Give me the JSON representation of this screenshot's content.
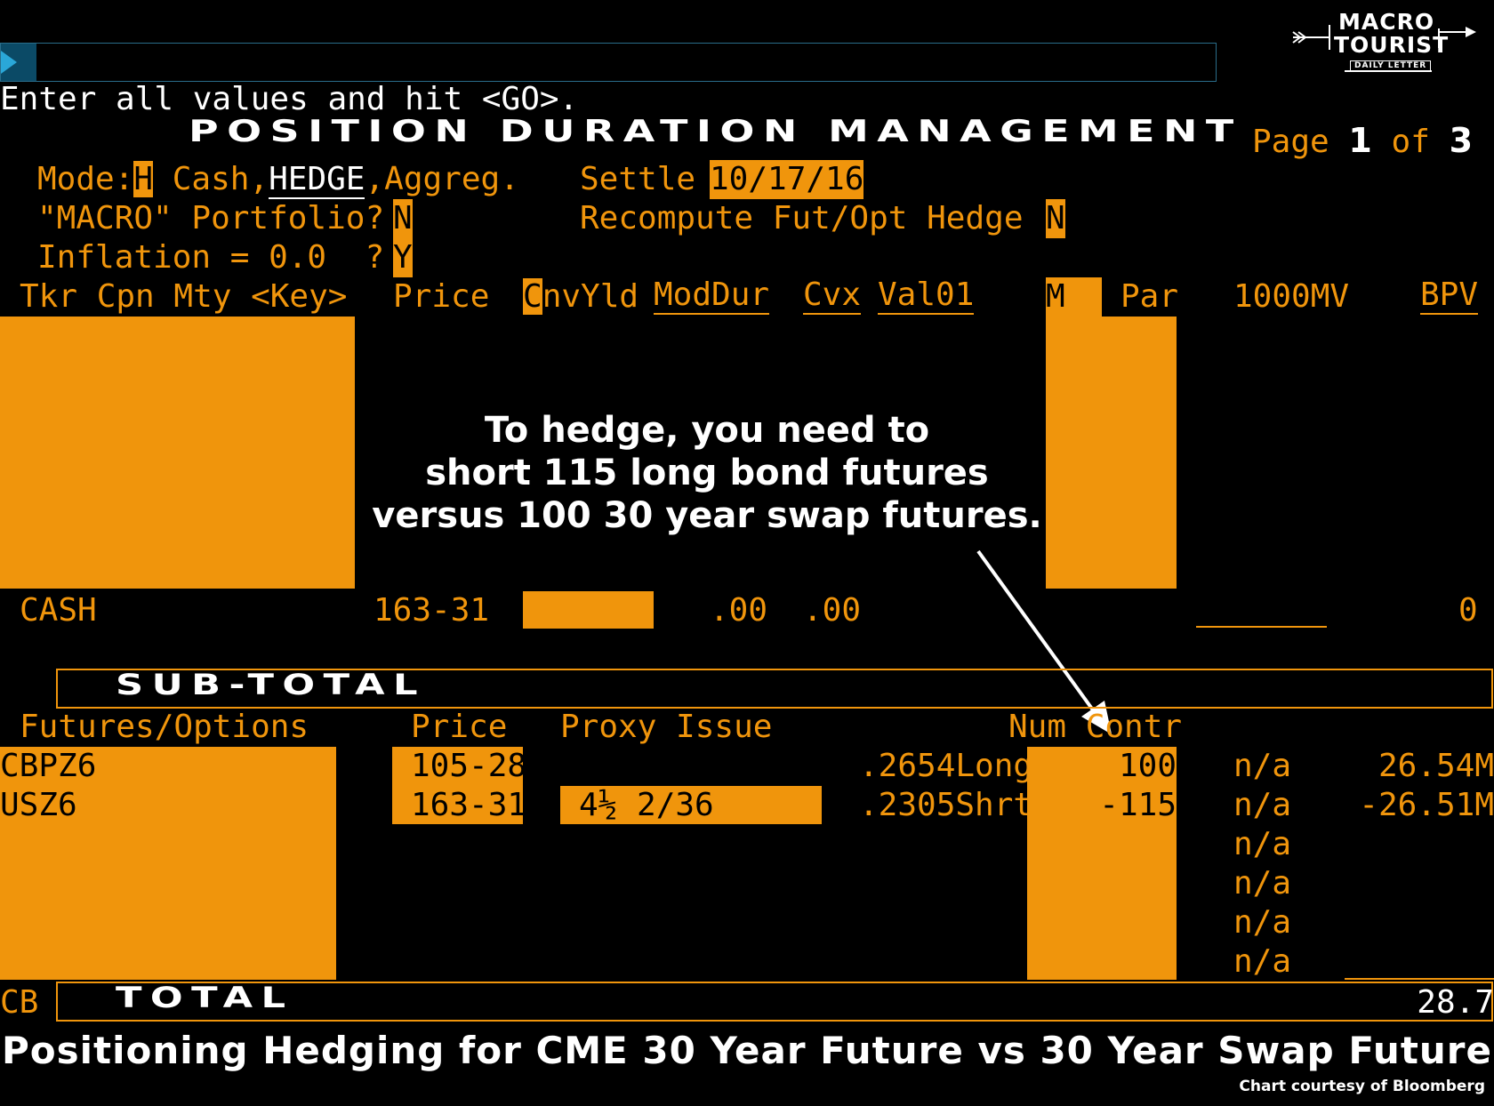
{
  "prompt": "Enter all values and hit <GO>.",
  "screen_title": "POSITION DURATION MANAGEMENT",
  "page": {
    "label": "Page",
    "current": "1",
    "of_label": "of",
    "total": "3"
  },
  "params": {
    "mode_label": "Mode:",
    "mode_value": "H",
    "mode_opt_cash": " Cash,",
    "mode_opt_hedge": "HEDGE",
    "mode_opt_aggreg": ",Aggreg.",
    "settle_label": "Settle",
    "settle_value": "10/17/16",
    "portfolio_label": "\"MACRO\" Portfolio?",
    "portfolio_value": "N",
    "recompute_label": "Recompute Fut/Opt Hedge",
    "recompute_value": "N",
    "inflation_label": "Inflation = 0.0  ?",
    "inflation_value": "Y"
  },
  "headers": {
    "tkr": "Tkr Cpn Mty <Key>",
    "price": "Price",
    "cnvyld_c": "C",
    "cnvyld_rest": "nvYld",
    "moddur": "ModDur",
    "cvx": "Cvx",
    "val01": "Val01",
    "m": "M",
    "par": "Par",
    "mv": "1000MV",
    "bpv": "BPV"
  },
  "cash_row": {
    "name": "CASH",
    "price": "163-31",
    "moddur": ".00",
    "cvx": ".00",
    "bpv": "0"
  },
  "subtotal_label": "SUB-TOTAL",
  "fut_headers": {
    "name": "Futures/Options",
    "price": "Price",
    "proxy": "Proxy Issue",
    "num": "Num Contr"
  },
  "futures": [
    {
      "name": "CBPZ6",
      "price": "105-28",
      "proxy": "",
      "ratio": ".2654Long",
      "num": "100",
      "mv": "n/a",
      "bpv": "26.54M"
    },
    {
      "name": "USZ6",
      "price": "163-31",
      "proxy": "4½ 2/36",
      "ratio": ".2305Shrt",
      "num": "-115",
      "mv": "n/a",
      "bpv": "-26.51M"
    }
  ],
  "extra_na": [
    "n/a",
    "n/a",
    "n/a",
    "n/a"
  ],
  "total": {
    "prefix": "CB",
    "label": "TOTAL",
    "value": "28.7"
  },
  "annotation": {
    "line1": "To hedge, you need to",
    "line2": "short 115 long bond futures",
    "line3": "versus 100 30 year swap futures."
  },
  "caption": "Positioning Hedging for CME 30 Year Future vs 30 Year Swap Future",
  "credit": "Chart courtesy of Bloomberg",
  "logo": {
    "line1": "MACRO",
    "line2": "TOURIST",
    "line3": "DAILY LETTER"
  },
  "colors": {
    "amber": "#f0950c",
    "background": "#000000",
    "text_white": "#ffffff",
    "cmd_bar": "#0b4a66"
  }
}
